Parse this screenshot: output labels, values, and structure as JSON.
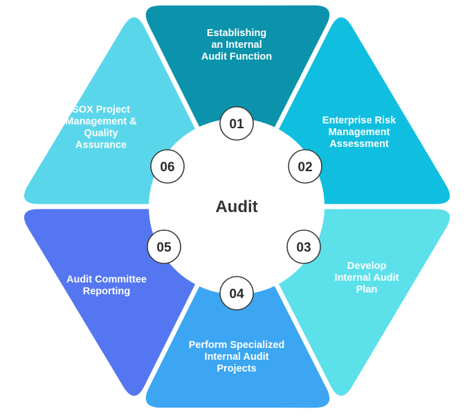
{
  "center": {
    "label": "Audit"
  },
  "segments": [
    {
      "number": "01",
      "label": [
        "Establishing",
        "an Internal",
        "Audit Function"
      ],
      "color": "#0b93ab"
    },
    {
      "number": "02",
      "label": [
        "Enterprise Risk",
        "Management",
        "Assessment"
      ],
      "color": "#10bfdf"
    },
    {
      "number": "03",
      "label": [
        "Develop",
        "Internal Audit",
        "Plan"
      ],
      "color": "#5ce0ea"
    },
    {
      "number": "04",
      "label": [
        "Perform Specialized",
        "Internal Audit",
        "Projects"
      ],
      "color": "#3ca6f2"
    },
    {
      "number": "05",
      "label": [
        "Audit Committee",
        "Reporting"
      ],
      "color": "#5476f0"
    },
    {
      "number": "06",
      "label": [
        "SOX Project",
        "Management &",
        "Quality",
        "Assurance"
      ],
      "color": "#5ad6ea"
    }
  ]
}
